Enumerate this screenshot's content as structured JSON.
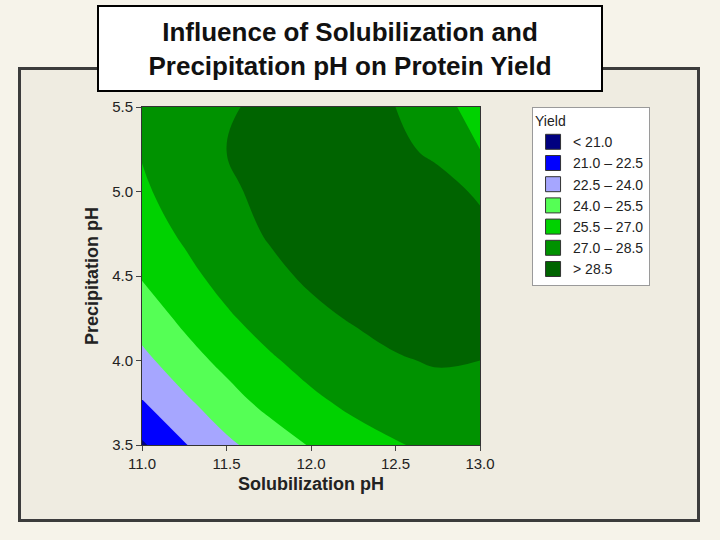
{
  "chart_data": {
    "type": "contour",
    "title": "Influence of Solubilization and Precipitation pH on Protein Yield",
    "x_label": "Solubilization pH",
    "y_label": "Precipitation pH",
    "x": [
      11,
      11.25,
      11.5,
      11.75,
      12,
      12.25,
      12.5,
      12.75,
      13
    ],
    "y": [
      3.5,
      3.75,
      4,
      4.25,
      4.5,
      4.75,
      5,
      5.25,
      5.5
    ],
    "z": [
      [
        20.8,
        22.4,
        23.7,
        24.7,
        25.6,
        26.4,
        26.9,
        27.3,
        27.4
      ],
      [
        22.4,
        23.7,
        24.9,
        25.9,
        26.7,
        27.3,
        27.7,
        28.0,
        28.1
      ],
      [
        23.6,
        24.9,
        25.9,
        26.8,
        27.5,
        28.0,
        28.4,
        28.6,
        28.5
      ],
      [
        24.7,
        25.8,
        26.8,
        27.6,
        28.2,
        28.6,
        28.9,
        28.9,
        28.8
      ],
      [
        25.6,
        26.6,
        27.5,
        28.2,
        28.7,
        29.0,
        29.2,
        29.1,
        28.9
      ],
      [
        26.3,
        27.2,
        28.0,
        28.6,
        29.0,
        29.2,
        29.3,
        29.2,
        28.9
      ],
      [
        26.8,
        27.6,
        28.3,
        28.8,
        29.1,
        29.3,
        29.2,
        29.0,
        28.3
      ],
      [
        27.1,
        27.9,
        28.5,
        28.9,
        29.1,
        29.1,
        28.8,
        28.2,
        27.0
      ],
      [
        27.3,
        28.0,
        28.4,
        28.7,
        28.9,
        28.8,
        28.5,
        27.6,
        26.3
      ]
    ],
    "levels": [
      21,
      22.5,
      24,
      25.5,
      27,
      28.5
    ],
    "level_labels": [
      "< 21.0",
      "21.0 – 22.5",
      "22.5 – 24.0",
      "24.0 – 25.5",
      "25.5 – 27.0",
      "27.0 – 28.5",
      "> 28.5"
    ],
    "colors": [
      "#000080",
      "#0000ff",
      "#a6a6ff",
      "#55ff55",
      "#00d200",
      "#009200",
      "#006400"
    ],
    "legend_title": "Yield",
    "legend": "right",
    "xlim": [
      11,
      13
    ],
    "ylim": [
      3.5,
      5.5
    ],
    "xticks": [
      {
        "value": 11,
        "label": "11.0"
      },
      11.5,
      {
        "value": 12,
        "label": "12.0"
      },
      12.5,
      {
        "value": 13,
        "label": "13.0"
      }
    ],
    "yticks": [
      3.5,
      {
        "value": 4,
        "label": "4.0"
      },
      4.5,
      {
        "value": 5,
        "label": "5.0"
      },
      5.5
    ]
  }
}
